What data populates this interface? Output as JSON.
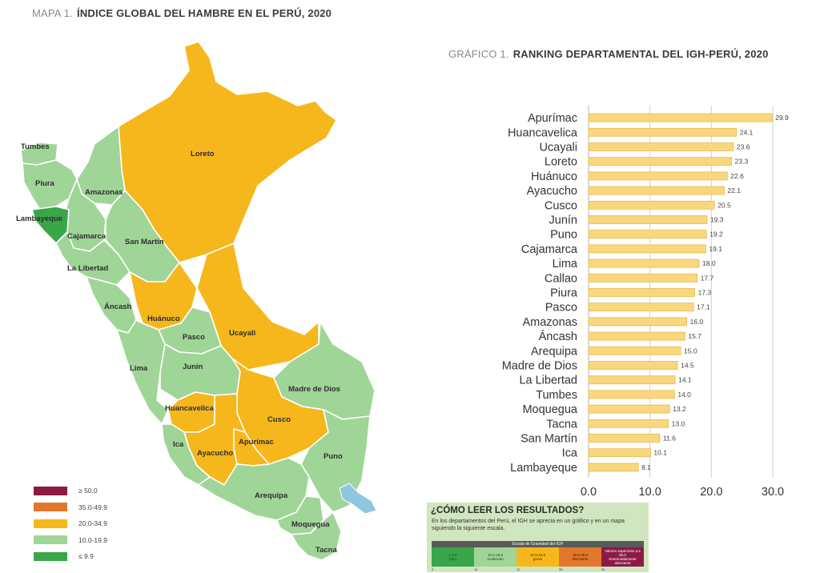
{
  "map": {
    "prefix": "MAPA 1.",
    "title": "ÍNDICE GLOBAL DEL HAMBRE EN EL PERÚ, 2020",
    "colors": {
      "dark_green": "#3aa64a",
      "light_green": "#9fd597",
      "yellow": "#f6b71c",
      "orange": "#e3772b",
      "maroon": "#8b1b44",
      "border": "#ffffff",
      "lake": "#8fc6e0"
    },
    "legend": [
      {
        "label": "≥ 50.0",
        "color": "#8b1b44"
      },
      {
        "label": "35.0-49.9",
        "color": "#e3772b"
      },
      {
        "label": "20.0-34.9",
        "color": "#f6b71c"
      },
      {
        "label": "10.0-19.9",
        "color": "#9fd597"
      },
      {
        "label": "≤ 9.9",
        "color": "#3aa64a"
      }
    ],
    "regions": [
      {
        "id": "tumbes",
        "name": "Tumbes",
        "color": "light_green"
      },
      {
        "id": "piura",
        "name": "Piura",
        "color": "light_green"
      },
      {
        "id": "lambayeque",
        "name": "Lambayeque",
        "color": "dark_green"
      },
      {
        "id": "amazonas",
        "name": "Amazonas",
        "color": "light_green"
      },
      {
        "id": "cajamarca",
        "name": "Cajamarca",
        "color": "light_green"
      },
      {
        "id": "la-libertad",
        "name": "La Libertad",
        "color": "light_green"
      },
      {
        "id": "san-martin",
        "name": "San Martín",
        "color": "light_green"
      },
      {
        "id": "loreto",
        "name": "Loreto",
        "color": "yellow"
      },
      {
        "id": "ancash",
        "name": "Áncash",
        "color": "light_green"
      },
      {
        "id": "huanuco",
        "name": "Huánuco",
        "color": "yellow"
      },
      {
        "id": "pasco",
        "name": "Pasco",
        "color": "light_green"
      },
      {
        "id": "ucayali",
        "name": "Ucayali",
        "color": "yellow"
      },
      {
        "id": "lima",
        "name": "Lima",
        "color": "light_green"
      },
      {
        "id": "junin",
        "name": "Junín",
        "color": "light_green"
      },
      {
        "id": "madre-de-dios",
        "name": "Madre de Dios",
        "color": "light_green"
      },
      {
        "id": "huancavelica",
        "name": "Huancavelica",
        "color": "yellow"
      },
      {
        "id": "cusco",
        "name": "Cusco",
        "color": "yellow"
      },
      {
        "id": "apurimac",
        "name": "Apurímac",
        "color": "yellow"
      },
      {
        "id": "ica",
        "name": "Ica",
        "color": "light_green"
      },
      {
        "id": "ayacucho",
        "name": "Ayacucho",
        "color": "yellow"
      },
      {
        "id": "puno",
        "name": "Puno",
        "color": "light_green"
      },
      {
        "id": "arequipa",
        "name": "Arequipa",
        "color": "light_green"
      },
      {
        "id": "moquegua",
        "name": "Moquegua",
        "color": "light_green"
      },
      {
        "id": "tacna",
        "name": "Tacna",
        "color": "light_green"
      }
    ]
  },
  "chart": {
    "prefix": "GRÁFICO 1.",
    "title": "RANKING DEPARTAMENTAL DEL IGH-PERÚ, 2020"
  },
  "chart_data": {
    "type": "bar",
    "orientation": "horizontal",
    "title": "RANKING DEPARTAMENTAL DEL IGH-PERÚ, 2020",
    "categories": [
      "Apurímac",
      "Huancavelica",
      "Ucayali",
      "Loreto",
      "Huánuco",
      "Ayacucho",
      "Cusco",
      "Junín",
      "Puno",
      "Cajamarca",
      "Lima",
      "Callao",
      "Piura",
      "Pasco",
      "Amazonas",
      "Áncash",
      "Arequipa",
      "Madre de Dios",
      "La Libertad",
      "Tumbes",
      "Moquegua",
      "Tacna",
      "San Martín",
      "Ica",
      "Lambayeque"
    ],
    "values": [
      29.9,
      24.1,
      23.6,
      23.3,
      22.6,
      22.1,
      20.5,
      19.3,
      19.2,
      19.1,
      18.0,
      17.7,
      17.3,
      17.1,
      16.0,
      15.7,
      15.0,
      14.5,
      14.1,
      14.0,
      13.2,
      13.0,
      11.6,
      10.1,
      8.1
    ],
    "value_labels": [
      "29.9",
      "24.1",
      "23.6",
      "23.3",
      "22.6",
      "22.1",
      "20.5",
      "19.3",
      "19.2",
      "19.1",
      "18.0",
      "17.7",
      "17.3",
      "17.1",
      "16.0",
      "15.7",
      "15.0",
      "14.5",
      "14.1",
      "14.0",
      "13.2",
      "13.0",
      "11.6",
      "10.1",
      "8.1"
    ],
    "xlim": [
      0,
      30
    ],
    "xticks": [
      "0.0",
      "10.0",
      "20.0",
      "30.0"
    ],
    "xtick_values": [
      0,
      10,
      20,
      30
    ],
    "grid": true,
    "bar_color": "#f9d77e",
    "bar_edge": "#e9b94a"
  },
  "howto": {
    "title": "¿CÓMO LEER LOS RESULTADOS?",
    "text": "En los departamentos del Perú, el IGH se aprecia en un gráfico y en un mapa siguiendo la siguiente escala.",
    "scale_title": "Escala de Gravedad del IGH",
    "cells": [
      {
        "range": "≤ 9.9",
        "label": "bajo",
        "color": "#3aa64a",
        "text_color": "#1f3d1f"
      },
      {
        "range": "10.0-19.9",
        "label": "moderado",
        "color": "#9fd597",
        "text_color": "#2a3a2a"
      },
      {
        "range": "20.0-34.9",
        "label": "grave",
        "color": "#f6b71c",
        "text_color": "#3a2a00"
      },
      {
        "range": "35.0-49.9",
        "label": "alarmante",
        "color": "#e3772b",
        "text_color": "#3a1a00"
      },
      {
        "range": "Valores superiores a ≥ 50.0",
        "label": "Extremadamente alarmante",
        "color": "#8b1b44",
        "text_color": "#ffffff"
      }
    ],
    "ticks": [
      "0",
      "10",
      "20",
      "35",
      "50"
    ]
  }
}
